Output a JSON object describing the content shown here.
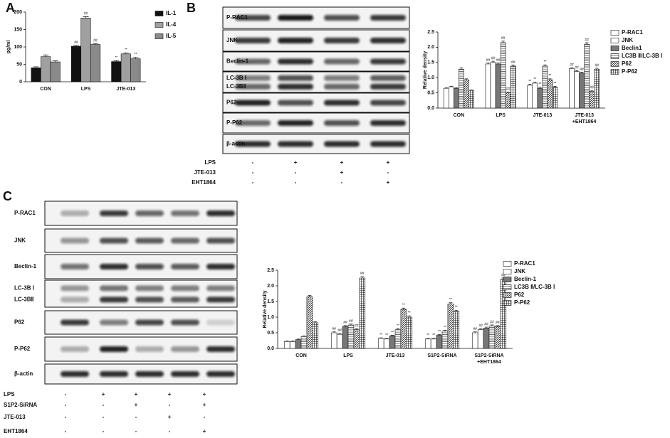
{
  "panel_labels": [
    "A",
    "B",
    "C"
  ],
  "chart_data": [
    {
      "type": "bar",
      "y_label": "pg/ml",
      "categories": [
        "CON",
        "LPS",
        "JTE-013"
      ],
      "ylim": [
        0,
        200
      ],
      "yticks": [
        0,
        50,
        100,
        150,
        200
      ],
      "series": [
        {
          "name": "IL-1",
          "color": "#111111",
          "values": [
            40,
            102,
            58
          ],
          "errors": [
            3,
            3,
            3
          ],
          "annotations": [
            null,
            "##",
            "**"
          ]
        },
        {
          "name": "IL-4",
          "color": "#a0a0a0",
          "values": [
            72,
            183,
            80
          ],
          "errors": [
            5,
            4,
            3
          ],
          "annotations": [
            null,
            "##",
            "**"
          ]
        },
        {
          "name": "IL-5",
          "color": "#8a8a8a",
          "values": [
            57,
            107,
            66
          ],
          "errors": [
            3,
            3,
            4
          ],
          "annotations": [
            null,
            "##",
            "**"
          ]
        }
      ]
    },
    {
      "type": "bar",
      "y_label": "Relative density",
      "categories": [
        "CON",
        "LPS",
        "JTE-013",
        [
          "JTE-013",
          "+EHT1864"
        ]
      ],
      "ylim": [
        0,
        2.5
      ],
      "yticks": [
        {
          "value": 0,
          "label": "0.0"
        },
        0.5,
        {
          "value": 1,
          "label": "1.0"
        },
        1.5,
        {
          "value": 2,
          "label": "2.0"
        },
        2.5
      ],
      "series": [
        {
          "name": "P-RAC1",
          "color": "#ffffff",
          "values": [
            0.65,
            1.45,
            0.75,
            1.3
          ],
          "errors": [
            0.02,
            0.03,
            0.03,
            0.03
          ],
          "annotations": [
            null,
            "##",
            "**",
            "##"
          ]
        },
        {
          "name": "JNK",
          "color": "#ffffff",
          "values": [
            0.7,
            1.5,
            0.82,
            1.2
          ],
          "errors": [
            0.02,
            0.04,
            0.03,
            0.03
          ],
          "annotations": [
            null,
            "##",
            "**",
            "##"
          ]
        },
        {
          "name": "Beclin1",
          "color": "#777777",
          "values": [
            0.65,
            1.45,
            0.65,
            1.15
          ],
          "errors": [
            0.02,
            0.03,
            0.03,
            0.03
          ],
          "annotations": [
            null,
            "##",
            "**",
            "##"
          ]
        },
        {
          "name": "LC3B Ⅱ/LC-3B Ⅰ",
          "color": "#ffffff",
          "pattern": "horizontal",
          "values": [
            1.28,
            2.15,
            1.38,
            2.1
          ],
          "errors": [
            0.04,
            0.05,
            0.04,
            0.05
          ],
          "annotations": [
            null,
            "##",
            "**",
            "##"
          ]
        },
        {
          "name": "P62",
          "color": "#ffffff",
          "pattern": "diagonal",
          "values": [
            0.93,
            0.5,
            0.93,
            0.55
          ],
          "errors": [
            0.03,
            0.03,
            0.03,
            0.03
          ],
          "annotations": [
            null,
            "##",
            "**",
            "##"
          ]
        },
        {
          "name": "P-P62",
          "color": "#ffffff",
          "pattern": "grid",
          "values": [
            0.58,
            1.38,
            0.68,
            1.28
          ],
          "errors": [
            0.02,
            0.03,
            0.03,
            0.03
          ],
          "annotations": [
            null,
            "##",
            "**",
            "##"
          ]
        }
      ]
    },
    {
      "type": "bar",
      "y_label": "Relative density",
      "categories": [
        "CON",
        "LPS",
        "JTE-013",
        "S1P2-SiRNA",
        [
          "S1P2-SiRNA",
          "+EHT1864"
        ]
      ],
      "ylim": [
        0,
        2.5
      ],
      "yticks": [
        {
          "value": 0,
          "label": "0.0"
        },
        0.5,
        {
          "value": 1,
          "label": "1.0"
        },
        1.5,
        {
          "value": 2,
          "label": "2.0"
        },
        2.5
      ],
      "series": [
        {
          "name": "P-RAC1",
          "color": "#ffffff",
          "values": [
            0.22,
            0.5,
            0.32,
            0.3,
            0.5
          ],
          "errors": [
            0.02,
            0.03,
            0.02,
            0.02,
            0.03
          ],
          "annotations": [
            null,
            "##",
            "**",
            "**",
            "##"
          ]
        },
        {
          "name": "JNK",
          "color": "#ffffff",
          "values": [
            0.22,
            0.45,
            0.3,
            0.3,
            0.6
          ],
          "errors": [
            0.02,
            0.03,
            0.02,
            0.02,
            0.03
          ],
          "annotations": [
            null,
            "##",
            "**",
            "**",
            "##"
          ]
        },
        {
          "name": "Beclin-1",
          "color": "#777777",
          "values": [
            0.28,
            0.7,
            0.4,
            0.42,
            0.65
          ],
          "errors": [
            0.02,
            0.03,
            0.02,
            0.02,
            0.03
          ],
          "annotations": [
            null,
            "##",
            "**",
            "**",
            "##"
          ]
        },
        {
          "name": "LC3B Ⅱ/LC-3B Ⅰ",
          "color": "#ffffff",
          "pattern": "horizontal",
          "values": [
            0.38,
            0.75,
            0.6,
            0.55,
            0.72
          ],
          "errors": [
            0.02,
            0.03,
            0.03,
            0.03,
            0.03
          ],
          "annotations": [
            null,
            "##",
            "**",
            "**",
            "##"
          ]
        },
        {
          "name": "P62",
          "color": "#ffffff",
          "pattern": "diagonal",
          "values": [
            1.65,
            0.6,
            1.25,
            1.42,
            0.7
          ],
          "errors": [
            0.04,
            0.03,
            0.04,
            0.04,
            0.03
          ],
          "annotations": [
            null,
            "##",
            "**",
            "**",
            "##"
          ]
        },
        {
          "name": "P-P62",
          "color": "#ffffff",
          "pattern": "grid",
          "values": [
            0.82,
            2.25,
            1.0,
            1.18,
            2.2
          ],
          "errors": [
            0.03,
            0.05,
            0.04,
            0.04,
            0.05
          ],
          "annotations": [
            null,
            "##",
            "**",
            "**",
            "##"
          ]
        }
      ]
    }
  ],
  "blots": [
    {
      "rows": [
        "P-RAC1",
        "JNK",
        "Beclin-1",
        [
          "LC-3B Ⅰ",
          "LC-3BⅡ"
        ],
        "P62",
        "P-P62",
        "β-actin"
      ],
      "treatments": [
        {
          "name": "LPS",
          "signs": [
            "-",
            "+",
            "+",
            "+"
          ]
        },
        {
          "name": "JTE-013",
          "signs": [
            "-",
            "-",
            "+",
            "-"
          ]
        },
        {
          "name": "EHT1864",
          "signs": [
            "-",
            "-",
            "-",
            "+"
          ]
        }
      ]
    },
    {
      "rows": [
        "P-RAC1",
        "JNK",
        "Beclin-1",
        [
          "LC-3B Ⅰ",
          "LC-3BⅡ"
        ],
        "P62",
        "P-P62",
        "β-actin"
      ],
      "treatments": [
        {
          "name": "LPS",
          "signs": [
            "-",
            "+",
            "+",
            "+",
            "+"
          ]
        },
        {
          "name": "S1P2-SiRNA",
          "signs": [
            "-",
            "-",
            "+",
            "-",
            "+"
          ]
        },
        {
          "name": "JTE-013",
          "signs": [
            "-",
            "-",
            "-",
            "+",
            "-"
          ]
        },
        {
          "name": "EHT1864",
          "signs": [
            "-",
            "-",
            "-",
            "-",
            "+"
          ]
        }
      ]
    }
  ]
}
